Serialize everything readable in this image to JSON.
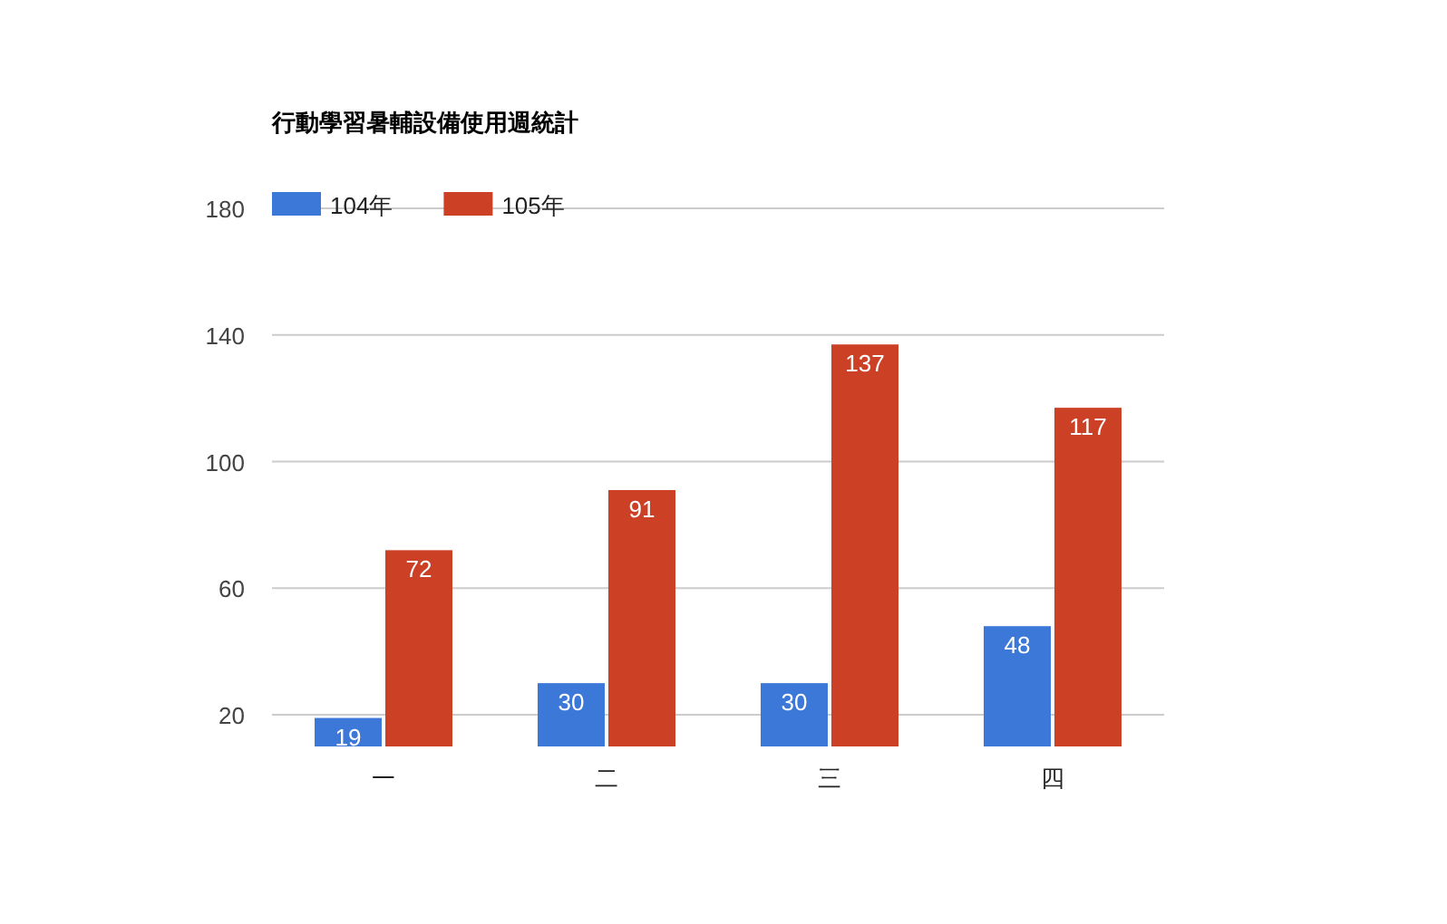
{
  "chart_data": {
    "type": "bar",
    "title": "行動學習暑輔設備使用週統計",
    "categories": [
      "一",
      "二",
      "三",
      "四"
    ],
    "series": [
      {
        "name": "104年",
        "color": "#3c78d8",
        "values": [
          19,
          30,
          30,
          48
        ]
      },
      {
        "name": "105年",
        "color": "#cc4125",
        "values": [
          72,
          91,
          137,
          117
        ]
      }
    ],
    "ylim": [
      10,
      180
    ],
    "yticks": [
      20,
      60,
      100,
      140,
      180
    ],
    "grid": "y",
    "legend": "top left",
    "data_labels": true
  }
}
